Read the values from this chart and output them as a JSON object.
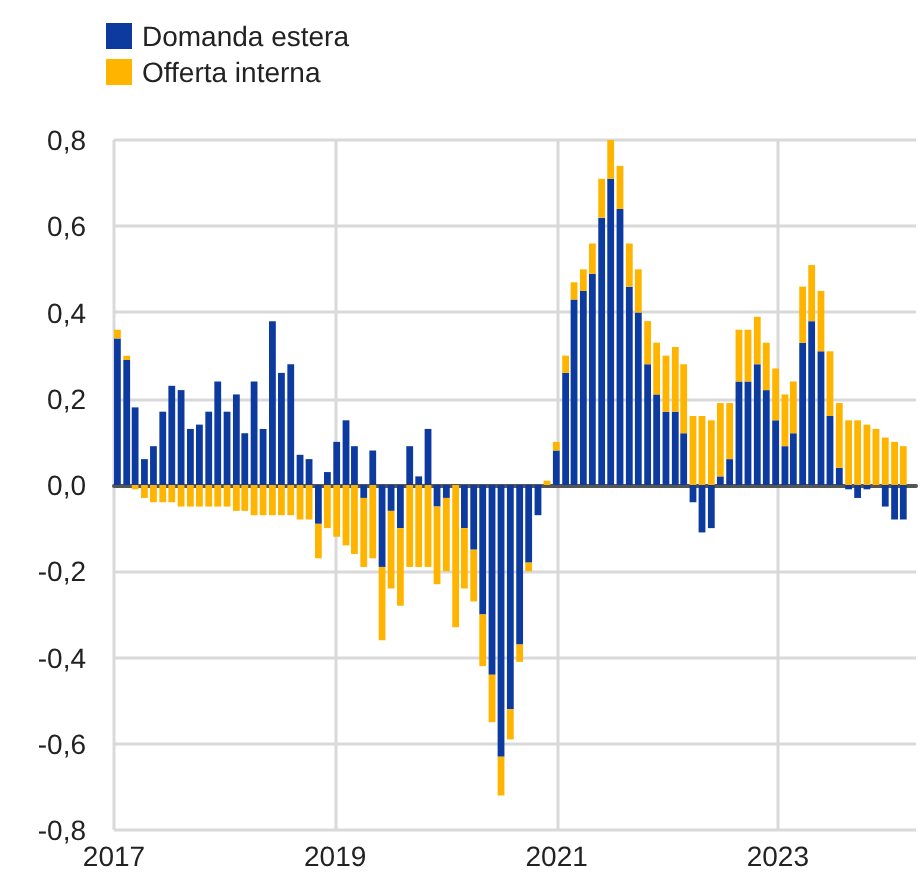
{
  "chart_data": {
    "type": "bar",
    "stacked": true,
    "x": [
      "2017-01",
      "2017-02",
      "2017-03",
      "2017-04",
      "2017-05",
      "2017-06",
      "2017-07",
      "2017-08",
      "2017-09",
      "2017-10",
      "2017-11",
      "2017-12",
      "2018-01",
      "2018-02",
      "2018-03",
      "2018-04",
      "2018-05",
      "2018-06",
      "2018-07",
      "2018-08",
      "2018-09",
      "2018-10",
      "2018-11",
      "2018-12",
      "2019-01",
      "2019-02",
      "2019-03",
      "2019-04",
      "2019-05",
      "2019-06",
      "2019-07",
      "2019-08",
      "2019-09",
      "2019-10",
      "2019-11",
      "2019-12",
      "2020-01",
      "2020-02",
      "2020-03",
      "2020-04",
      "2020-05",
      "2020-06",
      "2020-07",
      "2020-08",
      "2020-09",
      "2020-10",
      "2020-11",
      "2020-12",
      "2021-01",
      "2021-02",
      "2021-03",
      "2021-04",
      "2021-05",
      "2021-06",
      "2021-07",
      "2021-08",
      "2021-09",
      "2021-10",
      "2021-11",
      "2021-12",
      "2022-01",
      "2022-02",
      "2022-03",
      "2022-04",
      "2022-05",
      "2022-06",
      "2022-07",
      "2022-08",
      "2022-09",
      "2022-10",
      "2022-11",
      "2022-12",
      "2023-01",
      "2023-02",
      "2023-03",
      "2023-04",
      "2023-05",
      "2023-06",
      "2023-07",
      "2023-08",
      "2023-09",
      "2023-10",
      "2023-11",
      "2023-12",
      "2024-01",
      "2024-02",
      "2024-03"
    ],
    "series": [
      {
        "name": "Domanda estera",
        "color": "#0d3a9f",
        "values": [
          0.34,
          0.29,
          0.18,
          0.06,
          0.09,
          0.17,
          0.23,
          0.22,
          0.13,
          0.14,
          0.17,
          0.24,
          0.17,
          0.21,
          0.12,
          0.24,
          0.13,
          0.38,
          0.26,
          0.28,
          0.07,
          0.06,
          -0.09,
          0.03,
          0.1,
          0.15,
          0.09,
          -0.03,
          0.08,
          -0.19,
          -0.06,
          -0.1,
          0.09,
          0.02,
          0.13,
          -0.05,
          -0.03,
          0,
          -0.1,
          -0.15,
          -0.3,
          -0.44,
          -0.63,
          -0.52,
          -0.37,
          -0.18,
          -0.07,
          0,
          0.08,
          0.26,
          0.43,
          0.45,
          0.49,
          0.62,
          0.71,
          0.64,
          0.46,
          0.4,
          0.28,
          0.21,
          0.17,
          0.17,
          0.12,
          -0.04,
          -0.11,
          -0.1,
          0.02,
          0.06,
          0.24,
          0.24,
          0.28,
          0.22,
          0.15,
          0.09,
          0.12,
          0.33,
          0.38,
          0.31,
          0.16,
          0.04,
          -0.01,
          -0.03,
          -0.01,
          0,
          -0.05,
          -0.08,
          -0.08
        ]
      },
      {
        "name": "Offerta interna",
        "color": "#ffb400",
        "values": [
          0.02,
          0.01,
          -0.01,
          -0.03,
          -0.04,
          -0.04,
          -0.04,
          -0.05,
          -0.05,
          -0.05,
          -0.05,
          -0.05,
          -0.05,
          -0.06,
          -0.06,
          -0.07,
          -0.07,
          -0.07,
          -0.07,
          -0.07,
          -0.08,
          -0.08,
          -0.08,
          -0.1,
          -0.12,
          -0.14,
          -0.16,
          -0.16,
          -0.17,
          -0.17,
          -0.18,
          -0.18,
          -0.19,
          -0.19,
          -0.19,
          -0.18,
          -0.17,
          -0.33,
          -0.14,
          -0.12,
          -0.12,
          -0.11,
          -0.09,
          -0.07,
          -0.04,
          -0.02,
          0,
          0.01,
          0.02,
          0.04,
          0.04,
          0.05,
          0.07,
          0.09,
          0.09,
          0.1,
          0.1,
          0.1,
          0.1,
          0.12,
          0.13,
          0.15,
          0.16,
          0.16,
          0.16,
          0.15,
          0.17,
          0.13,
          0.12,
          0.12,
          0.11,
          0.11,
          0.12,
          0.12,
          0.12,
          0.13,
          0.13,
          0.14,
          0.15,
          0.15,
          0.15,
          0.15,
          0.14,
          0.13,
          0.11,
          0.1,
          0.09
        ]
      }
    ],
    "xlim": [
      "2017-01",
      "2024-04"
    ],
    "xticks": [
      "2017",
      "2019",
      "2021",
      "2023"
    ],
    "ylim": [
      -0.8,
      0.8
    ],
    "yticks": [
      {
        "value": -0.8,
        "label": "-0,8"
      },
      {
        "value": -0.6,
        "label": "-0,6"
      },
      {
        "value": -0.4,
        "label": "-0,4"
      },
      {
        "value": -0.2,
        "label": "-0,2"
      },
      {
        "value": 0,
        "label": "0,0"
      },
      {
        "value": 0.2,
        "label": "0,2"
      },
      {
        "value": 0.4,
        "label": "0,4"
      },
      {
        "value": 0.6,
        "label": "0,6"
      },
      {
        "value": 0.8,
        "label": "0,8"
      }
    ],
    "grid": true,
    "legend": "top left"
  }
}
